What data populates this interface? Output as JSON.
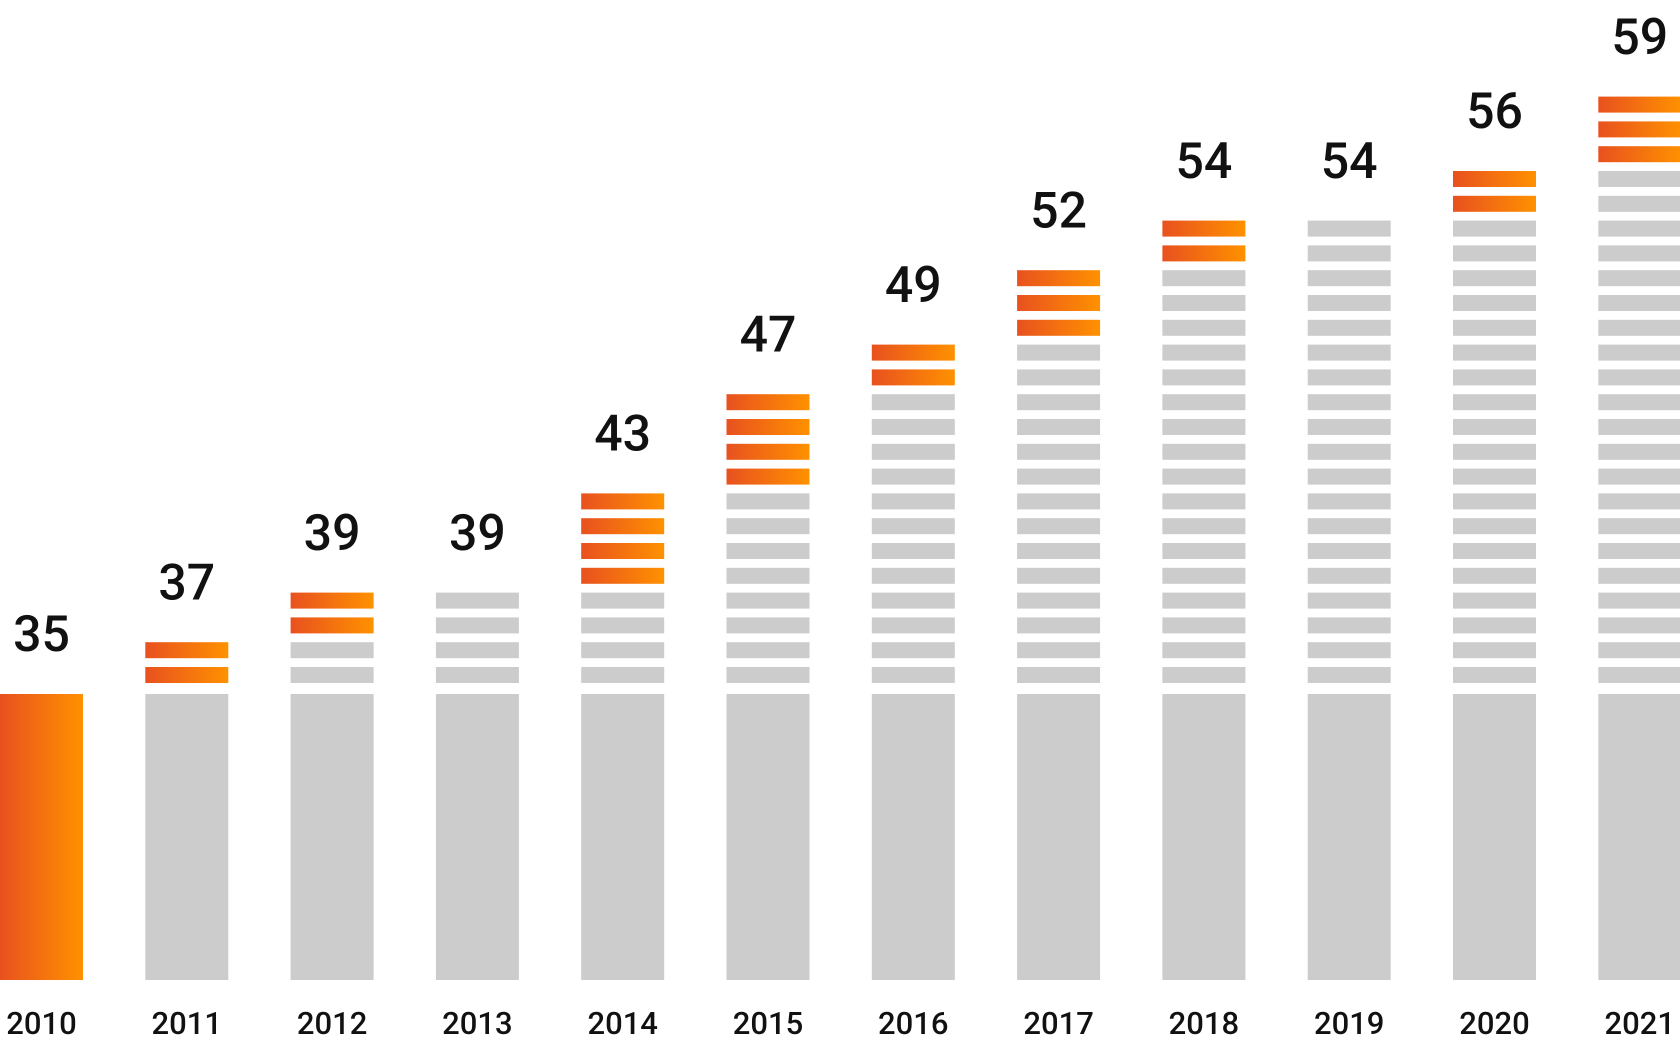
{
  "chart_data": {
    "type": "stacked-stripes",
    "categories": [
      "2010",
      "2011",
      "2012",
      "2013",
      "2014",
      "2015",
      "2016",
      "2017",
      "2018",
      "2019",
      "2020",
      "2021"
    ],
    "values": [
      35,
      37,
      39,
      39,
      43,
      47,
      49,
      52,
      54,
      54,
      56,
      59
    ],
    "color": "#cccccc",
    "highlight_colors": [
      "#e8511f",
      "#ff9100"
    ]
  }
}
